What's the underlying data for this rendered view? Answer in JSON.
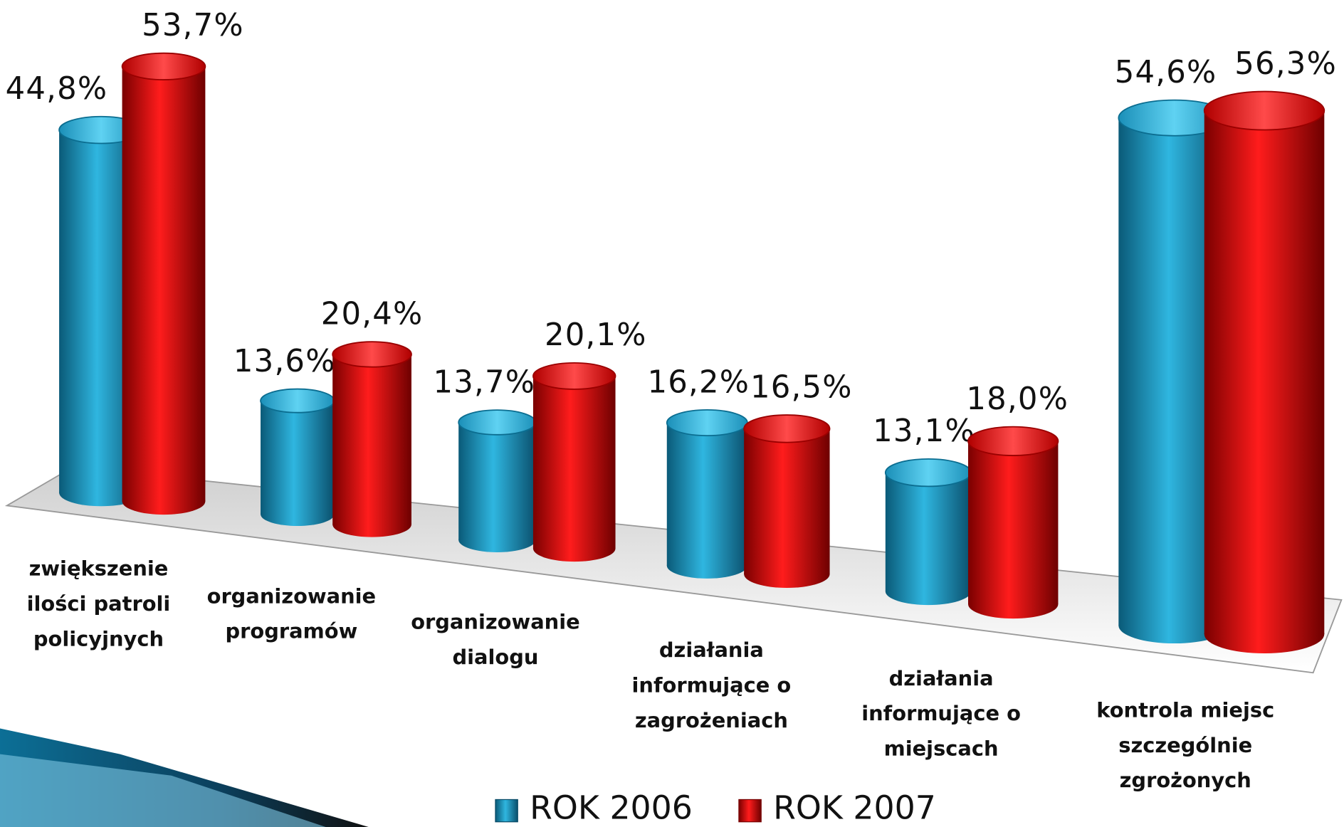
{
  "chart_data": {
    "type": "bar3d",
    "categories": [
      [
        "zwiększenie",
        "ilości patroli",
        "policyjnych"
      ],
      [
        "organizowanie",
        "programów"
      ],
      [
        "organizowanie",
        "dialogu"
      ],
      [
        "działania",
        "informujące o",
        "zagrożeniach"
      ],
      [
        "działania",
        "informujące o",
        "miejscach"
      ],
      [
        "kontrola miejsc",
        "szczególnie",
        "zgrożonych"
      ]
    ],
    "series": [
      {
        "name": "ROK 2006",
        "color": "#1a9cc8",
        "values": [
          44.8,
          13.6,
          13.7,
          16.2,
          13.1,
          54.6
        ],
        "value_labels": [
          "44,8%",
          "13,6%",
          "13,7%",
          "16,2%",
          "13,1%",
          "54,6%"
        ]
      },
      {
        "name": "ROK 2007",
        "color": "#e01010",
        "values": [
          53.7,
          20.4,
          20.1,
          16.5,
          18.0,
          56.3
        ],
        "value_labels": [
          "53,7%",
          "20,4%",
          "20,1%",
          "16,5%",
          "18,0%",
          "56,3%"
        ]
      }
    ],
    "legend": "bottom"
  }
}
